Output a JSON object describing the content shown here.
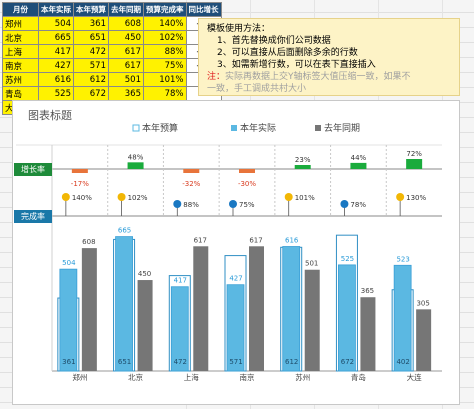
{
  "table": {
    "headers": [
      "月份",
      "本年实际",
      "本年预算",
      "去年同期",
      "预算完成率",
      "同比增长"
    ],
    "rows": [
      {
        "city": "郑州",
        "actual": "504",
        "budget": "361",
        "last": "608",
        "ratio": "140%",
        "growth": "-17%"
      },
      {
        "city": "北京",
        "actual": "665",
        "budget": "651",
        "last": "450",
        "ratio": "102%",
        "growth": "48%"
      },
      {
        "city": "上海",
        "actual": "417",
        "budget": "472",
        "last": "617",
        "ratio": "88%",
        "growth": "-32%"
      },
      {
        "city": "南京",
        "actual": "427",
        "budget": "571",
        "last": "617",
        "ratio": "75%",
        "growth": "-30%"
      },
      {
        "city": "苏州",
        "actual": "616",
        "budget": "612",
        "last": "501",
        "ratio": "101%",
        "growth": "23%"
      },
      {
        "city": "青岛",
        "actual": "525",
        "budget": "672",
        "last": "365",
        "ratio": "78%",
        "growth": "44%"
      },
      {
        "city": "大连",
        "actual": "523",
        "budget": "402",
        "last": "305",
        "ratio": "130%",
        "growth": "72%"
      }
    ]
  },
  "note": {
    "title": "模板使用方法：",
    "line1": "1、首先替换成你们公司数据",
    "line2": "2、可以直接从后面删除多余的行数",
    "line3": "3、如需新增行数，可以在表下直接插入",
    "warn_prefix": "注：",
    "warn_text": "实际再数据上交Y轴标签大值压缩一致，如果不",
    "warn_text2": "一致，手工调成共村大小"
  },
  "chart_title": "图表标题",
  "growth_tag": "增长率",
  "ratio_tag": "完成率",
  "colors": {
    "budget": "#5bb8e2",
    "actual": "#5bb8e2",
    "last": "#767676",
    "growth_pos": "#1aab3c",
    "growth_neg": "#e8743b",
    "tag_growth": "#1e8b3a",
    "tag_ratio": "#1a78a8",
    "pin_high": "#f2b705",
    "pin_low": "#1a78c2"
  },
  "chart_data": {
    "type": "bar",
    "title": "图表标题",
    "categories": [
      "郑州",
      "北京",
      "上海",
      "南京",
      "苏州",
      "青岛",
      "大连"
    ],
    "series": [
      {
        "name": "本年预算",
        "values": [
          361,
          651,
          472,
          571,
          612,
          672,
          402
        ]
      },
      {
        "name": "本年实际",
        "values": [
          504,
          665,
          417,
          427,
          616,
          525,
          523
        ]
      },
      {
        "name": "去年同期",
        "values": [
          608,
          450,
          617,
          617,
          501,
          365,
          305
        ]
      }
    ],
    "growth": [
      -17,
      48,
      -32,
      -30,
      23,
      44,
      72
    ],
    "growth_labels": [
      "-17%",
      "48%",
      "-32%",
      "-30%",
      "23%",
      "44%",
      "72%"
    ],
    "ratio": [
      140,
      102,
      88,
      75,
      101,
      78,
      130
    ],
    "ratio_labels": [
      "140%",
      "102%",
      "88%",
      "75%",
      "101%",
      "78%",
      "130%"
    ],
    "legend_position": "top",
    "ylim": [
      0,
      700
    ]
  }
}
